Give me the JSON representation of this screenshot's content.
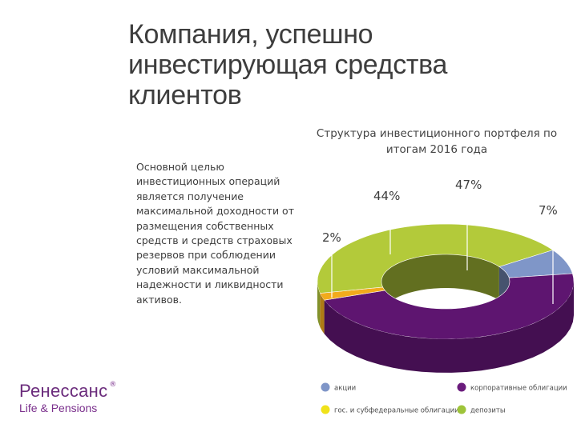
{
  "header": {
    "title": "Компания, успешно инвестирующая средства клиентов"
  },
  "intro": {
    "text": "Основной целью инвестиционных операций является получение максимальной доходности от размещения собственных средств и средств страховых резервов при соблюдении условий максимальной надежности и ликвидности активов."
  },
  "chart_data": {
    "type": "pie",
    "variant": "3d-donut",
    "title": "Структура инвестиционного портфеля по итогам 2016 года",
    "categories": [
      "акции",
      "корпоративные облигации",
      "гос. и субфедеральные облигации",
      "депозиты"
    ],
    "values": [
      7,
      47,
      2,
      44
    ],
    "labels": [
      "7%",
      "47%",
      "2%",
      "44%"
    ],
    "colors": [
      "#7f96c8",
      "#5e1570",
      "#f2ab1c",
      "#b3ca3a"
    ],
    "legend_position": "bottom",
    "legend_marker_colors": [
      "#7f96c8",
      "#6a1b7c",
      "#f0e21a",
      "#9ec43a"
    ]
  },
  "logo": {
    "name": "Ренессанс",
    "registered": "®",
    "subtitle": "Life & Pensions"
  }
}
